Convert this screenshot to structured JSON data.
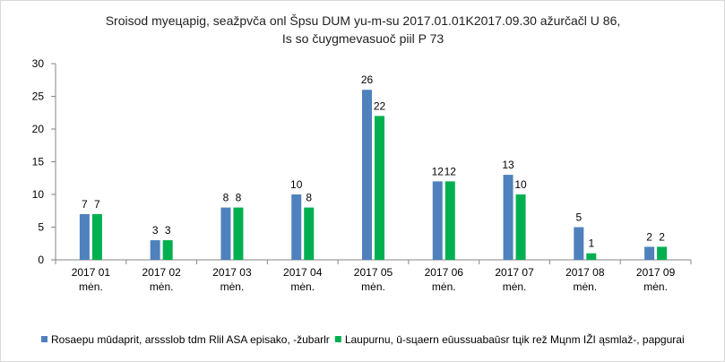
{
  "chart_data": {
    "type": "bar",
    "title_lines": [
      "Sroisod mуeцapig, seažpvča onl Špsu DUM yu-m-su 2017.01.01K2017.09.30  ažurčačl U 86,",
      "Is so čuygmevasuoč piil P 73"
    ],
    "categories": [
      [
        "2017 01",
        "mėn."
      ],
      [
        "2017 02",
        "mėn."
      ],
      [
        "2017 03",
        "mėn."
      ],
      [
        "2017 04",
        "mėn."
      ],
      [
        "2017 05",
        "mėn."
      ],
      [
        "2017 06",
        "mėn."
      ],
      [
        "2017 07",
        "mėn."
      ],
      [
        "2017 08",
        "mėn."
      ],
      [
        "2017 09",
        "mėn."
      ]
    ],
    "series": [
      {
        "name": "Rosaepu mūdaprit, arssslob tdm Rlil ASA episako, -žubarlr",
        "color": "#4f81bd",
        "values": [
          7,
          3,
          8,
          10,
          26,
          12,
          13,
          5,
          2
        ]
      },
      {
        "name": "Laupurnu, ū-sцaern eūussuabaūsr tцik rež Mцnm IŽI ąsmlaž-, papgurai",
        "color": "#00b050",
        "values": [
          7,
          3,
          8,
          8,
          22,
          12,
          10,
          1,
          2
        ]
      }
    ],
    "ylim": [
      0,
      30
    ],
    "yticks": [
      0,
      5,
      10,
      15,
      20,
      25,
      30
    ],
    "xlabel": "",
    "ylabel": "",
    "grid": false,
    "legend_position": "bottom"
  }
}
